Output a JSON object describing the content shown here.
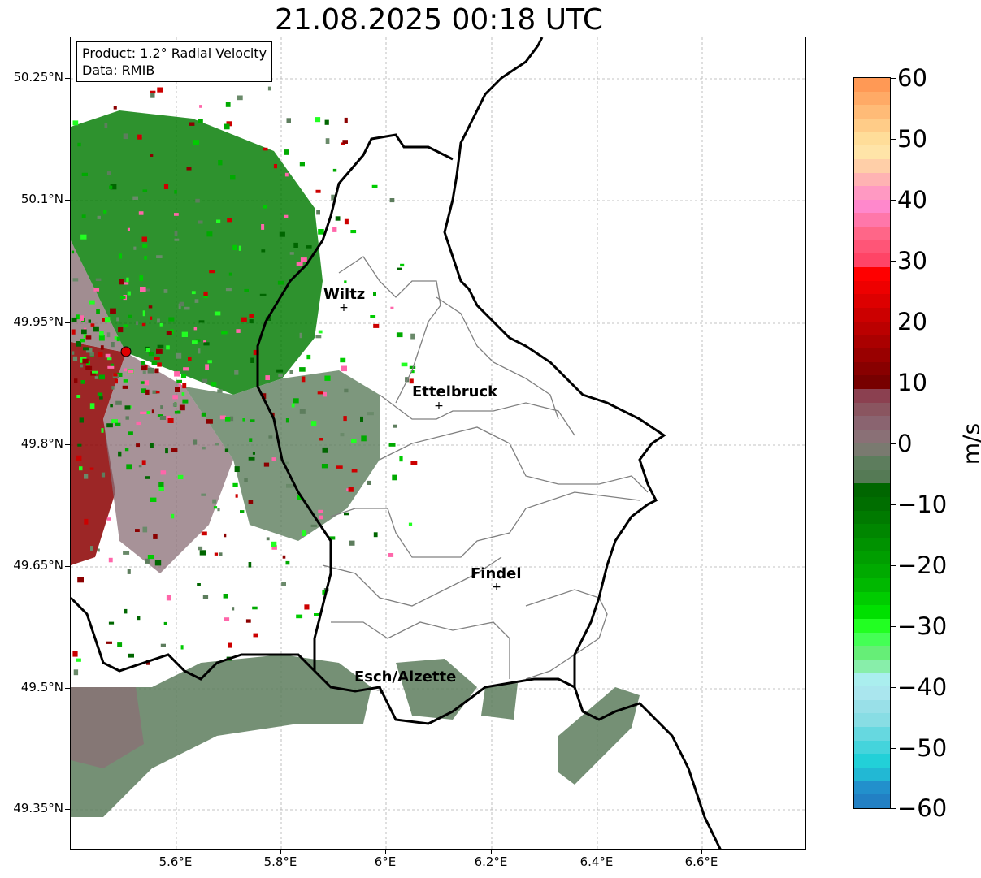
{
  "title": "21.08.2025 00:18 UTC",
  "info": {
    "product": "Product: 1.2° Radial Velocity",
    "source": "Data: RMIB"
  },
  "axes": {
    "y_ticks": [
      "50.25°N",
      "50.1°N",
      "49.95°N",
      "49.8°N",
      "49.65°N",
      "49.5°N",
      "49.35°N"
    ],
    "x_ticks": [
      "5.6°E",
      "5.8°E",
      "6°E",
      "6.2°E",
      "6.4°E",
      "6.6°E"
    ]
  },
  "cities": [
    {
      "name": "Wiltz"
    },
    {
      "name": "Ettelbruck"
    },
    {
      "name": "Findel"
    },
    {
      "name": "Esch/Alzette"
    }
  ],
  "colorbar": {
    "label": "m/s",
    "ticks": [
      "60",
      "50",
      "40",
      "30",
      "20",
      "10",
      "0",
      "−10",
      "−20",
      "−30",
      "−40",
      "−50",
      "−60"
    ]
  },
  "colors": {
    "approaching": "#008800",
    "receding": "#8b0000",
    "near_zero": "#5d7d5d",
    "radar_site": "#e00000"
  }
}
